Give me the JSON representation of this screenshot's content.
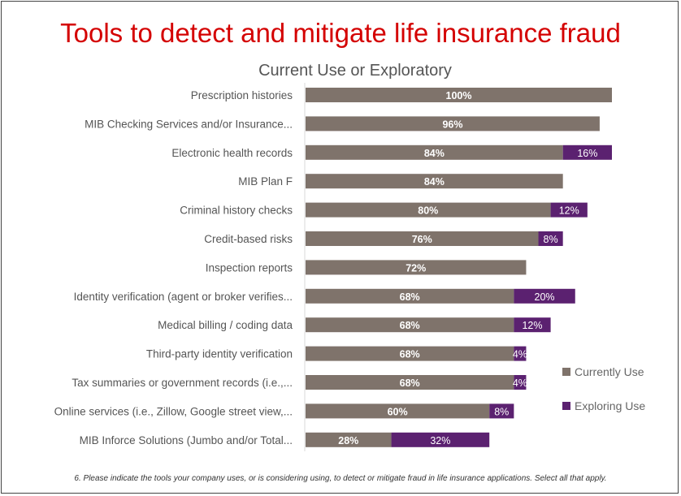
{
  "title": "Tools to detect and mitigate life insurance fraud",
  "footnote": "6. Please indicate the tools your company uses, or is considering using, to detect or mitigate fraud in life insurance applications. Select all that apply.",
  "chart_data": {
    "type": "bar",
    "orientation": "horizontal",
    "stacked": true,
    "title": "Current Use or Exploratory",
    "categories": [
      "Prescription histories",
      "MIB Checking Services and/or Insurance...",
      "Electronic health records",
      "MIB Plan F",
      "Criminal history checks",
      "Credit-based risks",
      "Inspection reports",
      "Identity verification (agent or broker verifies...",
      "Medical billing / coding data",
      "Third-party identity verification",
      "Tax summaries or government records (i.e.,...",
      "Online services (i.e., Zillow, Google street view,...",
      "MIB Inforce Solutions (Jumbo and/or Total..."
    ],
    "series": [
      {
        "name": "Currently Use",
        "color": "#7f736b",
        "values": [
          100,
          96,
          84,
          84,
          80,
          76,
          72,
          68,
          68,
          68,
          68,
          60,
          28
        ]
      },
      {
        "name": "Exploring Use",
        "color": "#5b2170",
        "values": [
          null,
          null,
          16,
          null,
          12,
          8,
          null,
          20,
          12,
          4,
          4,
          8,
          32
        ]
      }
    ],
    "xlim": [
      0,
      100
    ],
    "unit": "%",
    "grid": false,
    "legend": "right",
    "colors": {
      "title": "#d40000"
    }
  }
}
